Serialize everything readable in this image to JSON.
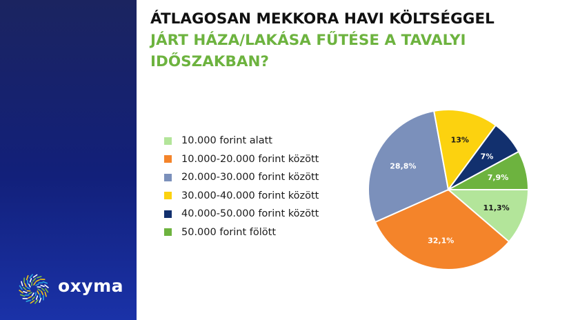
{
  "title": {
    "line1": "ÁTLAGOSAN MEKKORA HAVI KÖLTSÉGGEL",
    "line2": "JÁRT HÁZA/LAKÁSA FŰTÉSE A TAVALYI",
    "line3": "IDŐSZAKBAN?",
    "color1": "#111111",
    "color2": "#6db33f"
  },
  "brand": {
    "name": "oxyma",
    "sidebar_color": "#12207a"
  },
  "chart_data": {
    "type": "pie",
    "title": "ÁTLAGOSAN MEKKORA HAVI KÖLTSÉGGEL JÁRT HÁZA/LAKÁSA FŰTÉSE A TAVALYI IDŐSZAKBAN?",
    "legend_position": "left",
    "slices": [
      {
        "label": "10.000 forint alatt",
        "value": 11.3,
        "display": "11,3%",
        "color": "#b3e59a",
        "text_color": "#1a1a1a"
      },
      {
        "label": "10.000-20.000 forint között",
        "value": 32.1,
        "display": "32,1%",
        "color": "#f4842a",
        "text_color": "#ffffff"
      },
      {
        "label": "20.000-30.000 forint között",
        "value": 28.8,
        "display": "28,8%",
        "color": "#7b90bb",
        "text_color": "#ffffff"
      },
      {
        "label": "30.000-40.000 forint között",
        "value": 13,
        "display": "13%",
        "color": "#fcd20f",
        "text_color": "#1a1a1a"
      },
      {
        "label": "40.000-50.000 forint között",
        "value": 7,
        "display": "7%",
        "color": "#12306e",
        "text_color": "#ffffff"
      },
      {
        "label": "50.000 forint fölött",
        "value": 7.9,
        "display": "7,9%",
        "color": "#6db33f",
        "text_color": "#ffffff"
      }
    ]
  }
}
